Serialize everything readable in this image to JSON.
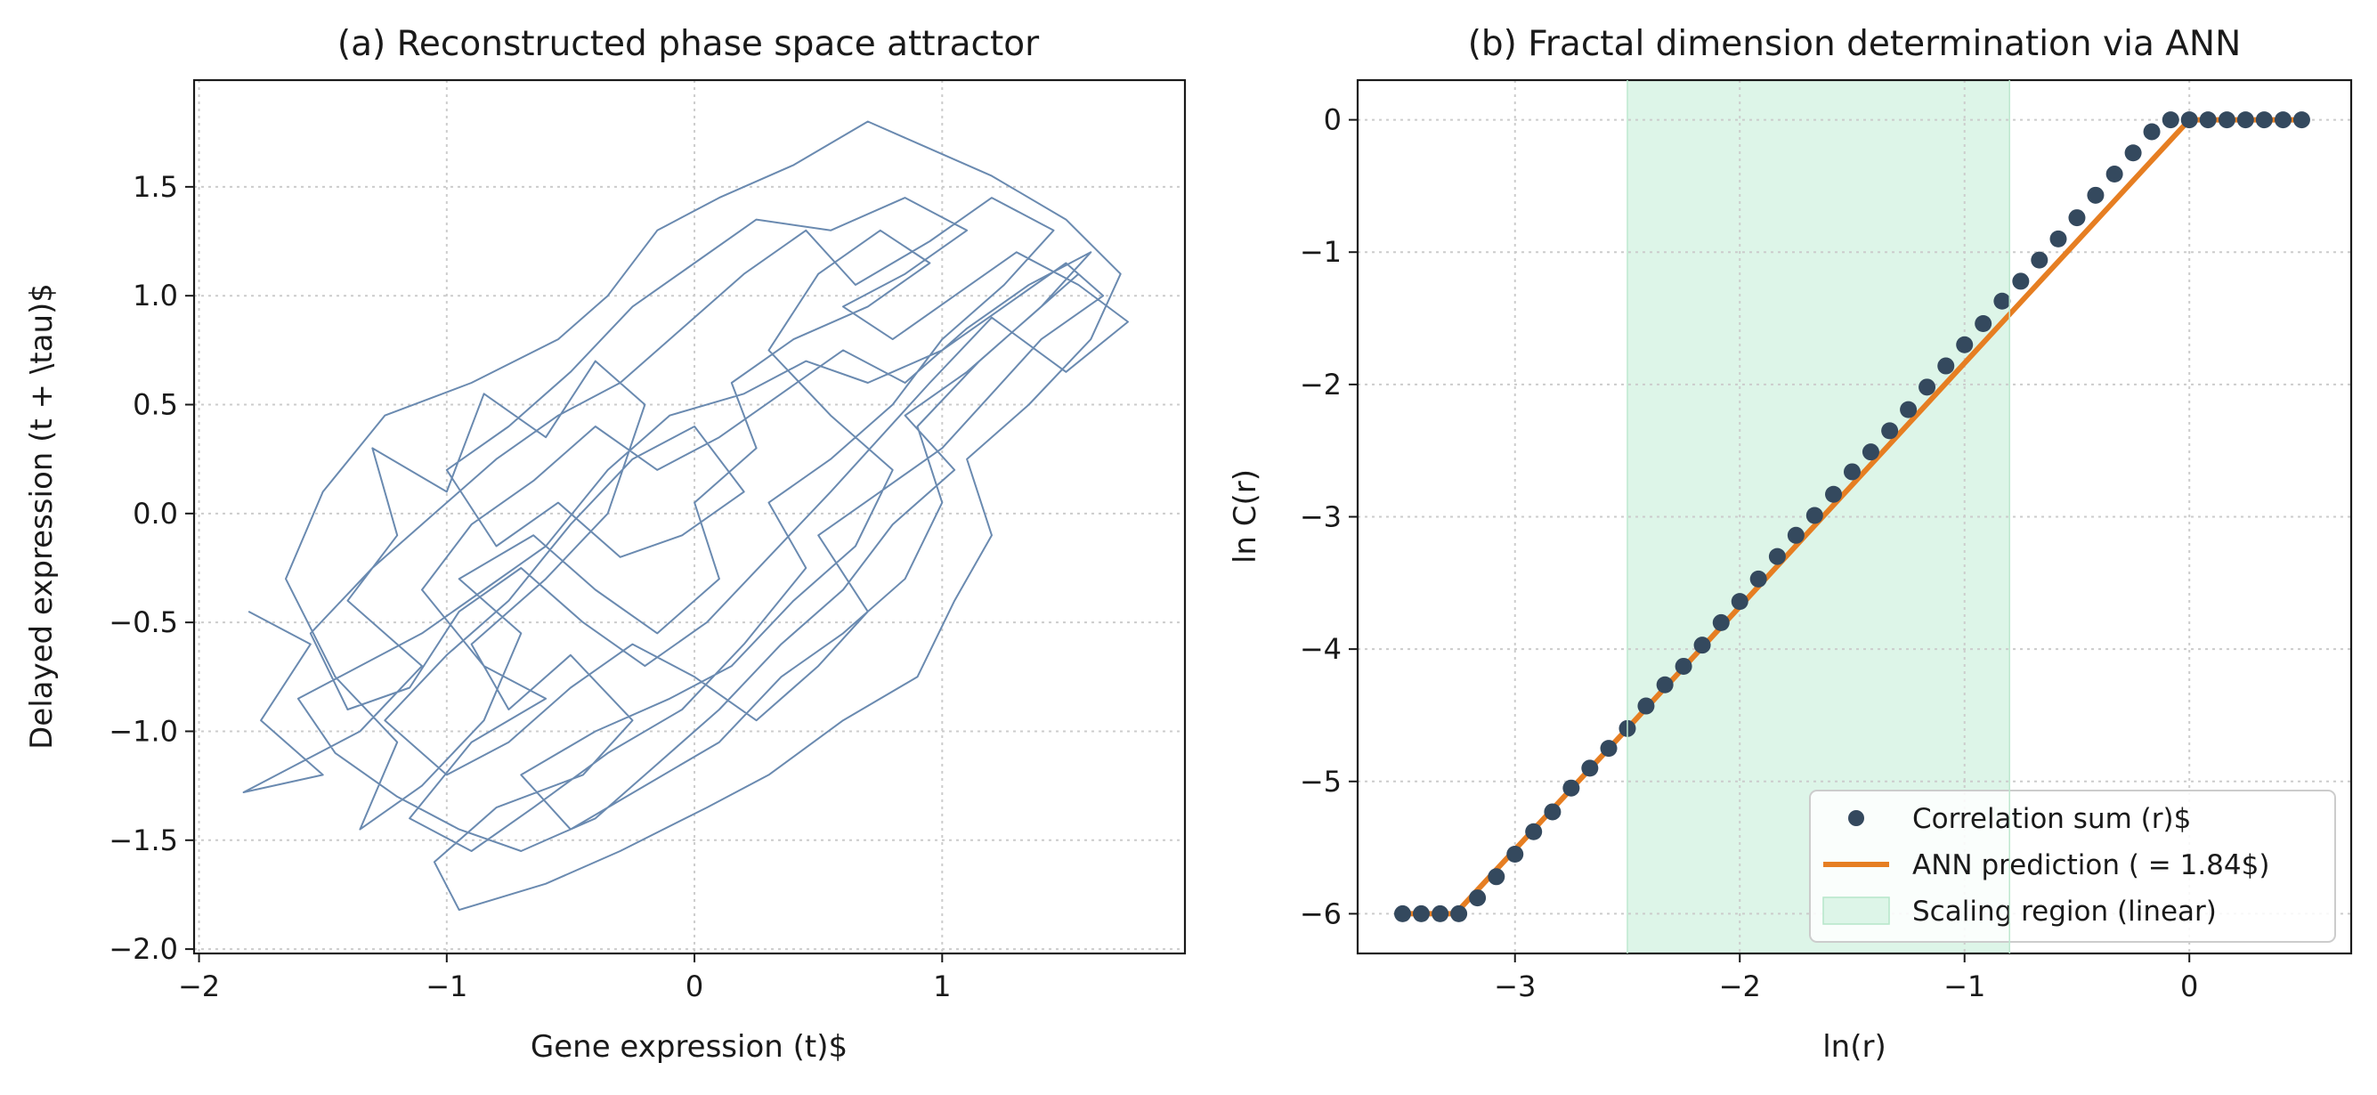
{
  "chart_data": [
    {
      "type": "line",
      "title": "(a) Reconstructed phase space attractor",
      "xlabel": "Gene expression (t)$",
      "ylabel": "Delayed expression (t + \\tau)$",
      "xlim": [
        -2.02,
        1.98
      ],
      "ylim": [
        -2.02,
        1.99
      ],
      "xticks": [
        -2,
        -1,
        0,
        1
      ],
      "xtick_labels": [
        "−2",
        "−1",
        "0",
        "1"
      ],
      "yticks": [
        -2.0,
        -1.5,
        -1.0,
        -0.5,
        0.0,
        0.5,
        1.0,
        1.5
      ],
      "ytick_labels": [
        "−2.0",
        "−1.5",
        "−1.0",
        "−0.5",
        "0.0",
        "0.5",
        "1.0",
        "1.5"
      ],
      "grid": true,
      "series": [
        {
          "color": "#6a8ab0",
          "style": "thin line",
          "points": [
            [
              -1.8,
              -0.45
            ],
            [
              -1.55,
              -0.6
            ],
            [
              -1.75,
              -0.95
            ],
            [
              -1.5,
              -1.2
            ],
            [
              -1.82,
              -1.28
            ],
            [
              -1.35,
              -1.0
            ],
            [
              -1.1,
              -0.7
            ],
            [
              -1.4,
              -0.4
            ],
            [
              -1.2,
              -0.1
            ],
            [
              -1.3,
              0.3
            ],
            [
              -1.0,
              0.1
            ],
            [
              -0.85,
              0.55
            ],
            [
              -0.6,
              0.35
            ],
            [
              -0.4,
              0.7
            ],
            [
              -0.2,
              0.5
            ],
            [
              -0.35,
              0.0
            ],
            [
              -0.6,
              -0.3
            ],
            [
              -0.9,
              -0.6
            ],
            [
              -0.75,
              -0.9
            ],
            [
              -0.5,
              -0.65
            ],
            [
              -0.25,
              -0.95
            ],
            [
              -0.45,
              -1.2
            ],
            [
              -0.8,
              -1.35
            ],
            [
              -1.05,
              -1.6
            ],
            [
              -0.95,
              -1.82
            ],
            [
              -0.6,
              -1.7
            ],
            [
              -0.3,
              -1.55
            ],
            [
              0.05,
              -1.35
            ],
            [
              0.3,
              -1.2
            ],
            [
              0.6,
              -0.95
            ],
            [
              0.9,
              -0.75
            ],
            [
              1.05,
              -0.4
            ],
            [
              1.2,
              -0.1
            ],
            [
              1.1,
              0.25
            ],
            [
              1.35,
              0.5
            ],
            [
              1.6,
              0.8
            ],
            [
              1.72,
              1.1
            ],
            [
              1.5,
              1.35
            ],
            [
              1.2,
              1.55
            ],
            [
              0.9,
              1.7
            ],
            [
              0.7,
              1.8
            ],
            [
              0.4,
              1.6
            ],
            [
              0.1,
              1.45
            ],
            [
              -0.15,
              1.3
            ],
            [
              -0.35,
              1.0
            ],
            [
              -0.55,
              0.8
            ],
            [
              -0.9,
              0.6
            ],
            [
              -1.25,
              0.45
            ],
            [
              -1.5,
              0.1
            ],
            [
              -1.65,
              -0.3
            ],
            [
              -1.45,
              -0.75
            ],
            [
              -1.2,
              -1.05
            ],
            [
              -1.35,
              -1.45
            ],
            [
              -1.1,
              -1.25
            ],
            [
              -0.85,
              -0.95
            ],
            [
              -0.7,
              -0.55
            ],
            [
              -0.95,
              -0.3
            ],
            [
              -0.65,
              -0.1
            ],
            [
              -0.4,
              -0.35
            ],
            [
              -0.15,
              -0.55
            ],
            [
              0.1,
              -0.3
            ],
            [
              0.0,
              0.05
            ],
            [
              0.25,
              0.3
            ],
            [
              0.15,
              0.6
            ],
            [
              0.4,
              0.8
            ],
            [
              0.7,
              0.95
            ],
            [
              0.95,
              1.15
            ],
            [
              0.75,
              1.3
            ],
            [
              0.5,
              1.1
            ],
            [
              0.3,
              0.75
            ],
            [
              0.55,
              0.45
            ],
            [
              0.8,
              0.2
            ],
            [
              0.65,
              -0.15
            ],
            [
              0.4,
              -0.4
            ],
            [
              0.15,
              -0.7
            ],
            [
              -0.1,
              -0.85
            ],
            [
              -0.4,
              -1.0
            ],
            [
              -0.7,
              -1.2
            ],
            [
              -0.5,
              -1.45
            ],
            [
              -0.2,
              -1.25
            ],
            [
              0.1,
              -1.05
            ],
            [
              0.35,
              -0.75
            ],
            [
              0.6,
              -0.55
            ],
            [
              0.85,
              -0.3
            ],
            [
              1.0,
              0.05
            ],
            [
              0.9,
              0.4
            ],
            [
              1.15,
              0.7
            ],
            [
              1.4,
              0.95
            ],
            [
              1.6,
              1.2
            ],
            [
              1.35,
              1.05
            ],
            [
              1.1,
              0.85
            ],
            [
              0.85,
              0.6
            ],
            [
              0.6,
              0.75
            ],
            [
              0.35,
              0.55
            ],
            [
              0.1,
              0.35
            ],
            [
              -0.15,
              0.2
            ],
            [
              -0.4,
              0.4
            ],
            [
              -0.65,
              0.15
            ],
            [
              -0.9,
              -0.05
            ],
            [
              -1.1,
              -0.35
            ],
            [
              -0.85,
              -0.7
            ],
            [
              -0.6,
              -0.85
            ],
            [
              -0.9,
              -1.05
            ],
            [
              -1.15,
              -1.4
            ],
            [
              -0.9,
              -1.55
            ],
            [
              -0.65,
              -1.35
            ],
            [
              -0.35,
              -1.1
            ],
            [
              -0.05,
              -0.9
            ],
            [
              0.2,
              -0.6
            ],
            [
              0.45,
              -0.25
            ],
            [
              0.3,
              0.05
            ],
            [
              0.55,
              0.25
            ],
            [
              0.8,
              0.5
            ],
            [
              1.0,
              0.8
            ],
            [
              1.25,
              1.05
            ],
            [
              1.45,
              1.3
            ],
            [
              1.2,
              1.45
            ],
            [
              0.95,
              1.25
            ],
            [
              0.65,
              1.05
            ],
            [
              0.45,
              1.3
            ],
            [
              0.2,
              1.1
            ],
            [
              -0.05,
              0.85
            ],
            [
              -0.3,
              0.6
            ],
            [
              -0.55,
              0.45
            ],
            [
              -0.8,
              0.25
            ],
            [
              -1.05,
              0.0
            ],
            [
              -1.3,
              -0.25
            ],
            [
              -1.55,
              -0.55
            ],
            [
              -1.4,
              -0.9
            ],
            [
              -1.15,
              -0.8
            ],
            [
              -0.95,
              -0.45
            ],
            [
              -0.7,
              -0.25
            ],
            [
              -0.45,
              -0.5
            ],
            [
              -0.2,
              -0.7
            ],
            [
              0.05,
              -0.5
            ],
            [
              0.3,
              -0.2
            ],
            [
              0.55,
              0.1
            ],
            [
              0.75,
              0.35
            ],
            [
              0.95,
              0.6
            ],
            [
              1.2,
              0.9
            ],
            [
              1.5,
              0.65
            ],
            [
              1.75,
              0.88
            ],
            [
              1.55,
              1.05
            ],
            [
              1.3,
              1.2
            ],
            [
              1.05,
              1.0
            ],
            [
              0.8,
              0.8
            ],
            [
              0.6,
              0.95
            ],
            [
              0.85,
              1.1
            ],
            [
              1.1,
              1.3
            ],
            [
              0.85,
              1.45
            ],
            [
              0.55,
              1.3
            ],
            [
              0.25,
              1.35
            ],
            [
              0.0,
              1.15
            ],
            [
              -0.25,
              0.95
            ],
            [
              -0.5,
              0.65
            ],
            [
              -0.75,
              0.4
            ],
            [
              -1.0,
              0.2
            ],
            [
              -0.8,
              -0.15
            ],
            [
              -0.55,
              0.05
            ],
            [
              -0.3,
              -0.2
            ],
            [
              -0.05,
              -0.1
            ],
            [
              0.2,
              0.1
            ],
            [
              0.0,
              0.4
            ],
            [
              -0.25,
              0.25
            ],
            [
              -0.5,
              -0.05
            ],
            [
              -0.75,
              -0.4
            ],
            [
              -1.0,
              -0.65
            ],
            [
              -1.25,
              -0.95
            ],
            [
              -1.0,
              -1.2
            ],
            [
              -0.75,
              -1.05
            ],
            [
              -0.5,
              -0.8
            ],
            [
              -0.25,
              -0.6
            ],
            [
              0.0,
              -0.75
            ],
            [
              0.25,
              -0.95
            ],
            [
              0.5,
              -0.7
            ],
            [
              0.7,
              -0.45
            ],
            [
              0.5,
              -0.1
            ],
            [
              0.75,
              0.1
            ],
            [
              1.0,
              0.3
            ],
            [
              1.2,
              0.55
            ],
            [
              1.4,
              0.8
            ],
            [
              1.65,
              1.0
            ],
            [
              1.5,
              1.15
            ],
            [
              1.25,
              0.95
            ],
            [
              1.0,
              0.75
            ],
            [
              0.7,
              0.6
            ],
            [
              0.45,
              0.7
            ],
            [
              0.2,
              0.55
            ],
            [
              -0.1,
              0.45
            ],
            [
              -0.35,
              0.2
            ],
            [
              -0.6,
              -0.15
            ],
            [
              -0.85,
              -0.35
            ],
            [
              -1.1,
              -0.55
            ],
            [
              -1.35,
              -0.7
            ],
            [
              -1.6,
              -0.85
            ],
            [
              -1.45,
              -1.1
            ],
            [
              -1.2,
              -1.3
            ],
            [
              -0.95,
              -1.45
            ],
            [
              -0.7,
              -1.55
            ],
            [
              -0.4,
              -1.4
            ],
            [
              -0.15,
              -1.15
            ],
            [
              0.1,
              -0.9
            ],
            [
              0.35,
              -0.6
            ],
            [
              0.6,
              -0.35
            ],
            [
              0.8,
              -0.05
            ],
            [
              1.05,
              0.2
            ],
            [
              0.85,
              0.45
            ],
            [
              1.1,
              0.65
            ],
            [
              1.35,
              0.9
            ],
            [
              1.55,
              1.1
            ]
          ]
        }
      ]
    },
    {
      "type": "scatter",
      "title": "(b) Fractal dimension determination via ANN",
      "xlabel": "ln(r)",
      "ylabel": "ln C(r)",
      "xlim": [
        -3.7,
        0.72
      ],
      "ylim": [
        -6.3,
        0.3
      ],
      "xticks": [
        -3,
        -2,
        -1,
        0
      ],
      "xtick_labels": [
        "−3",
        "−2",
        "−1",
        "0"
      ],
      "yticks": [
        -6,
        -5,
        -4,
        -3,
        -2,
        -1,
        0
      ],
      "ytick_labels": [
        "−6",
        "−5",
        "−4",
        "−3",
        "−2",
        "−1",
        "0"
      ],
      "grid": true,
      "legend_position": "lower-right",
      "shaded_region": {
        "name": "Scaling region (linear)",
        "x_start": -2.5,
        "x_end": -0.8,
        "color": "#ddf5e8"
      },
      "series": [
        {
          "name": "Correlation sum (r)$",
          "marker": "circle",
          "color": "#34495e",
          "x": [
            -3.5,
            -3.417,
            -3.333,
            -3.25,
            -3.167,
            -3.083,
            -3.0,
            -2.917,
            -2.833,
            -2.75,
            -2.667,
            -2.583,
            -2.5,
            -2.417,
            -2.333,
            -2.25,
            -2.167,
            -2.083,
            -2.0,
            -1.917,
            -1.833,
            -1.75,
            -1.667,
            -1.583,
            -1.5,
            -1.417,
            -1.333,
            -1.25,
            -1.167,
            -1.083,
            -1.0,
            -0.917,
            -0.833,
            -0.75,
            -0.667,
            -0.583,
            -0.5,
            -0.417,
            -0.333,
            -0.25,
            -0.167,
            -0.083,
            0.0,
            0.083,
            0.167,
            0.25,
            0.333,
            0.417,
            0.5
          ],
          "y": [
            -6.0,
            -6.0,
            -6.0,
            -6.0,
            -5.88,
            -5.72,
            -5.55,
            -5.38,
            -5.23,
            -5.05,
            -4.9,
            -4.75,
            -4.6,
            -4.43,
            -4.27,
            -4.13,
            -3.97,
            -3.8,
            -3.64,
            -3.47,
            -3.3,
            -3.14,
            -2.99,
            -2.83,
            -2.66,
            -2.51,
            -2.35,
            -2.19,
            -2.02,
            -1.86,
            -1.7,
            -1.54,
            -1.37,
            -1.22,
            -1.06,
            -0.9,
            -0.74,
            -0.57,
            -0.41,
            -0.25,
            -0.09,
            0.0,
            0.0,
            0.0,
            0.0,
            0.0,
            0.0,
            0.0,
            0.0
          ]
        },
        {
          "name": "ANN prediction ( = 1.84$)",
          "type": "line",
          "color": "#e67e22",
          "x": [
            -3.5,
            -3.265,
            -2.5,
            -0.8,
            0.0,
            0.5
          ],
          "y": [
            -6.0,
            -6.0,
            -4.6,
            -1.47,
            0.0,
            0.0
          ]
        }
      ]
    }
  ]
}
